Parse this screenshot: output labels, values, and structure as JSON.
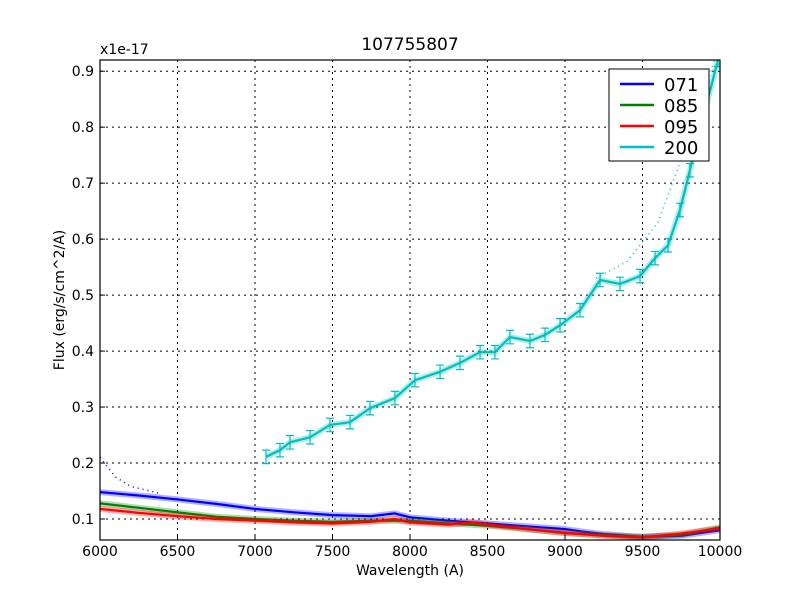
{
  "chart_data": {
    "type": "line",
    "title": "107755807",
    "xlabel": "Wavelength (A)",
    "ylabel": "Flux (erg/s/cm^2/A)",
    "y_offset_label": "x1e-17",
    "xlim": [
      6000,
      10000
    ],
    "ylim": [
      0.0625,
      0.92
    ],
    "xticks": [
      6000,
      6500,
      7000,
      7500,
      8000,
      8500,
      9000,
      9500,
      10000
    ],
    "yticks": [
      0.1,
      0.2,
      0.3,
      0.4,
      0.5,
      0.6,
      0.7,
      0.8,
      0.9
    ],
    "ytick_labels": [
      "0.1",
      "0.2",
      "0.3",
      "0.4",
      "0.5",
      "0.6",
      "0.7",
      "0.8",
      "0.9"
    ],
    "grid": true,
    "legend_position": "top-right",
    "series": [
      {
        "name": "071",
        "color": "#0000ff",
        "x": [
          6000,
          6250,
          6500,
          6750,
          7000,
          7250,
          7500,
          7750,
          7900,
          8000,
          8250,
          8500,
          8750,
          9000,
          9100,
          9250,
          9500,
          9750,
          10000
        ],
        "y": [
          0.148,
          0.142,
          0.135,
          0.127,
          0.118,
          0.112,
          0.107,
          0.105,
          0.11,
          0.103,
          0.097,
          0.092,
          0.087,
          0.082,
          0.078,
          0.073,
          0.068,
          0.07,
          0.08
        ]
      },
      {
        "name": "085",
        "color": "#008000",
        "x": [
          6000,
          6250,
          6500,
          6750,
          7000,
          7250,
          7500,
          7750,
          8000,
          8250,
          8500,
          8750,
          9000,
          9250,
          9500,
          9750,
          10000
        ],
        "y": [
          0.128,
          0.12,
          0.112,
          0.104,
          0.1,
          0.097,
          0.095,
          0.097,
          0.097,
          0.092,
          0.088,
          0.082,
          0.075,
          0.071,
          0.068,
          0.072,
          0.085
        ]
      },
      {
        "name": "095",
        "color": "#ff0000",
        "x": [
          6000,
          6250,
          6500,
          6750,
          7000,
          7250,
          7500,
          7750,
          7900,
          8000,
          8250,
          8400,
          8500,
          8750,
          9000,
          9250,
          9500,
          9750,
          10000
        ],
        "y": [
          0.118,
          0.111,
          0.105,
          0.1,
          0.097,
          0.094,
          0.092,
          0.095,
          0.1,
          0.094,
          0.09,
          0.094,
          0.09,
          0.082,
          0.075,
          0.07,
          0.067,
          0.074,
          0.083
        ]
      },
      {
        "name": "200",
        "color": "#00bfbf",
        "x": [
          7071,
          7161,
          7226,
          7355,
          7484,
          7613,
          7742,
          7903,
          8032,
          8194,
          8323,
          8452,
          8548,
          8645,
          8774,
          8871,
          8968,
          9097,
          9226,
          9355,
          9484,
          9581,
          9665,
          9742,
          9806,
          9903,
          9987
        ],
        "y": [
          0.211,
          0.223,
          0.237,
          0.246,
          0.268,
          0.273,
          0.298,
          0.316,
          0.348,
          0.363,
          0.379,
          0.398,
          0.398,
          0.425,
          0.418,
          0.429,
          0.446,
          0.473,
          0.527,
          0.52,
          0.534,
          0.566,
          0.589,
          0.652,
          0.723,
          0.83,
          0.92
        ],
        "error": 0.012
      }
    ],
    "model_curves": [
      {
        "series": "071",
        "color": "#0000ff",
        "x": [
          6000,
          6100,
          6200,
          6400
        ],
        "y": [
          0.21,
          0.175,
          0.158,
          0.145
        ]
      },
      {
        "series": "200",
        "color": "#00bfbf",
        "x": [
          9200,
          9400,
          9600,
          9800,
          10000
        ],
        "y": [
          0.53,
          0.56,
          0.63,
          0.78,
          0.95
        ]
      }
    ]
  }
}
